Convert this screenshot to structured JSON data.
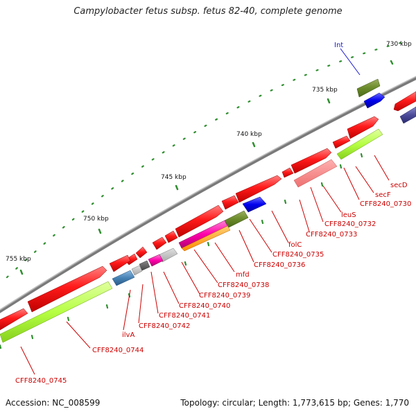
{
  "title": "Campylobacter fetus subsp. fetus 82-40, complete genome",
  "footer": {
    "accession": "Accession: NC_008599",
    "summary": "Topology: circular; Length: 1,773,615 bp; Genes: 1,770"
  },
  "colors": {
    "cds_red": "#ff1a1a",
    "cds_light": "#bbff55",
    "backbone": "#888888",
    "label_red": "#cc0000",
    "label_blue": "#1a1acc",
    "tick_green": "#2f8f2f"
  },
  "scale_labels": [
    "730 kbp",
    "735 kbp",
    "740 kbp",
    "745 kbp",
    "750 kbp",
    "755 kbp"
  ],
  "gene_labels": [
    "Int",
    "secD",
    "secF",
    "CFF8240_0730",
    "leuS",
    "CFF8240_0732",
    "CFF8240_0733",
    "folC",
    "CFF8240_0735",
    "CFF8240_0736",
    "mfd",
    "CFF8240_0738",
    "CFF8240_0739",
    "CFF8240_0740",
    "CFF8240_0741",
    "CFF8240_0742",
    "ilvA",
    "CFF8240_0744",
    "CFF8240_0745"
  ]
}
